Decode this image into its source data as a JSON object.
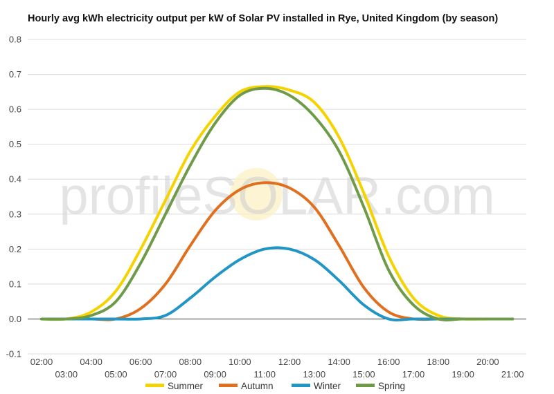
{
  "chart_data": {
    "type": "line",
    "title": "Hourly avg kWh electricity output per kW of Solar PV installed in Rye, United Kingdom (by season)",
    "watermark": "profileSOLAR.com",
    "xlabel": "",
    "ylabel": "",
    "ylim": [
      -0.1,
      0.8
    ],
    "yticks": [
      "0.8",
      "0.7",
      "0.6",
      "0.5",
      "0.4",
      "0.3",
      "0.2",
      "0.1",
      "0.0",
      "-0.1"
    ],
    "categories": [
      "02:00",
      "03:00",
      "04:00",
      "05:00",
      "06:00",
      "07:00",
      "08:00",
      "09:00",
      "10:00",
      "11:00",
      "12:00",
      "13:00",
      "14:00",
      "15:00",
      "16:00",
      "17:00",
      "18:00",
      "19:00",
      "20:00",
      "21:00"
    ],
    "grid": true,
    "legend_position": "bottom",
    "series": [
      {
        "name": "Summer",
        "color": "#f5d300",
        "values": [
          0,
          0,
          0.02,
          0.08,
          0.2,
          0.34,
          0.48,
          0.58,
          0.65,
          0.665,
          0.655,
          0.62,
          0.52,
          0.36,
          0.18,
          0.06,
          0.01,
          0,
          0,
          0
        ]
      },
      {
        "name": "Autumn",
        "color": "#e07020",
        "values": [
          0,
          0,
          0,
          0,
          0.03,
          0.1,
          0.21,
          0.31,
          0.37,
          0.39,
          0.375,
          0.32,
          0.21,
          0.09,
          0.02,
          0,
          0,
          0,
          0,
          0
        ]
      },
      {
        "name": "Winter",
        "color": "#2196c4",
        "values": [
          0,
          0,
          0,
          0,
          0,
          0.01,
          0.06,
          0.12,
          0.17,
          0.2,
          0.2,
          0.17,
          0.11,
          0.04,
          0,
          0,
          0,
          0,
          0,
          0
        ]
      },
      {
        "name": "Spring",
        "color": "#6f9b48",
        "values": [
          0,
          0,
          0.01,
          0.05,
          0.16,
          0.3,
          0.44,
          0.56,
          0.64,
          0.66,
          0.64,
          0.58,
          0.48,
          0.32,
          0.14,
          0.04,
          0,
          0,
          0,
          0
        ]
      }
    ]
  }
}
